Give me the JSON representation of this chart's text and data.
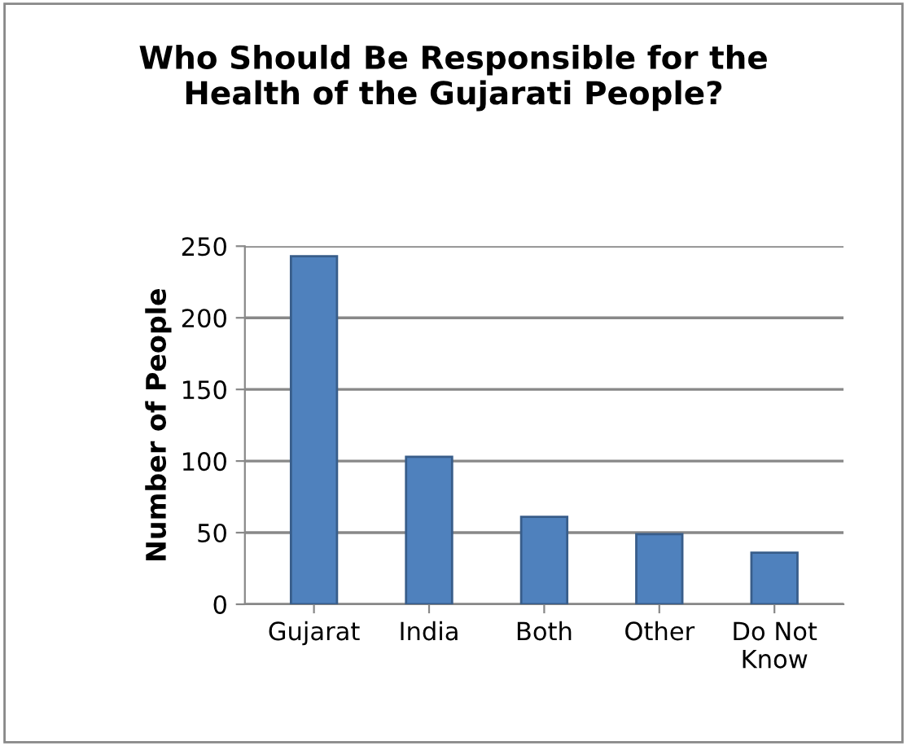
{
  "chart_data": {
    "type": "bar",
    "title": "Who Should Be Responsible for the\nHealth of the Gujarati People?",
    "ylabel": "Number of People",
    "categories": [
      "Gujarat",
      "India",
      "Both",
      "Other",
      "Do Not\nKnow"
    ],
    "values": [
      243,
      103,
      61,
      49,
      36
    ],
    "color": "#4f81bd",
    "ylim": [
      0,
      250
    ],
    "yticks": [
      0,
      50,
      100,
      150,
      200,
      250
    ],
    "grid": "y"
  }
}
